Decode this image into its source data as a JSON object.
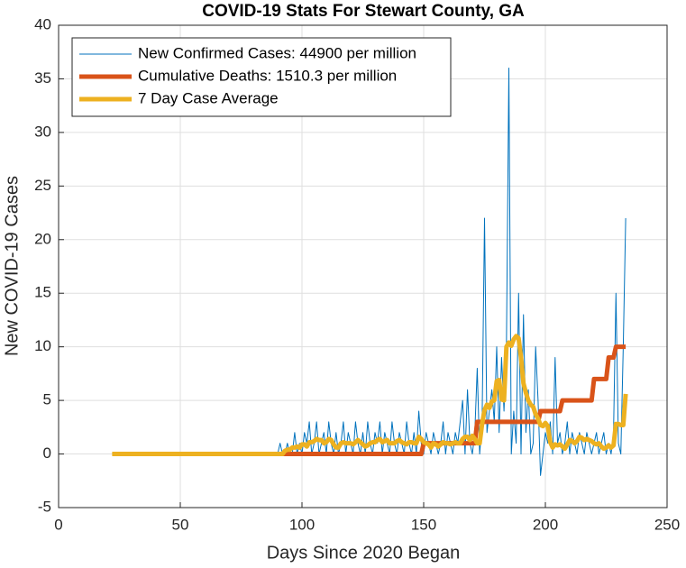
{
  "chart_data": {
    "type": "line",
    "title": "COVID-19 Stats For Stewart County, GA",
    "xlabel": "Days Since 2020 Began",
    "ylabel": "New COVID-19 Cases",
    "xlim": [
      0,
      250
    ],
    "xticks": [
      0,
      50,
      100,
      150,
      200,
      250
    ],
    "ylim": [
      -5,
      40
    ],
    "yticks": [
      -5,
      0,
      5,
      10,
      15,
      20,
      25,
      30,
      35,
      40
    ],
    "grid": true,
    "legend": "upper left",
    "x": [
      22,
      23,
      24,
      25,
      26,
      27,
      28,
      29,
      30,
      31,
      32,
      33,
      34,
      35,
      36,
      37,
      38,
      39,
      40,
      41,
      42,
      43,
      44,
      45,
      46,
      47,
      48,
      49,
      50,
      51,
      52,
      53,
      54,
      55,
      56,
      57,
      58,
      59,
      60,
      61,
      62,
      63,
      64,
      65,
      66,
      67,
      68,
      69,
      70,
      71,
      72,
      73,
      74,
      75,
      76,
      77,
      78,
      79,
      80,
      81,
      82,
      83,
      84,
      85,
      86,
      87,
      88,
      89,
      90,
      91,
      92,
      93,
      94,
      95,
      96,
      97,
      98,
      99,
      100,
      101,
      102,
      103,
      104,
      105,
      106,
      107,
      108,
      109,
      110,
      111,
      112,
      113,
      114,
      115,
      116,
      117,
      118,
      119,
      120,
      121,
      122,
      123,
      124,
      125,
      126,
      127,
      128,
      129,
      130,
      131,
      132,
      133,
      134,
      135,
      136,
      137,
      138,
      139,
      140,
      141,
      142,
      143,
      144,
      145,
      146,
      147,
      148,
      149,
      150,
      151,
      152,
      153,
      154,
      155,
      156,
      157,
      158,
      159,
      160,
      161,
      162,
      163,
      164,
      165,
      166,
      167,
      168,
      169,
      170,
      171,
      172,
      173,
      174,
      175,
      176,
      177,
      178,
      179,
      180,
      181,
      182,
      183,
      184,
      185,
      186,
      187,
      188,
      189,
      190,
      191,
      192,
      193,
      194,
      195,
      196,
      197,
      198,
      199,
      200,
      201,
      202,
      203,
      204,
      205,
      206,
      207,
      208,
      209,
      210,
      211,
      212,
      213,
      214,
      215,
      216,
      217,
      218,
      219,
      220,
      221,
      222,
      223,
      224,
      225,
      226,
      227,
      228,
      229,
      230,
      231,
      232,
      233
    ],
    "series": [
      {
        "name": "New Confirmed Cases: 44900 per million",
        "color": "#0072bd",
        "linewidth": 1,
        "values": [
          0,
          0,
          0,
          0,
          0,
          0,
          0,
          0,
          0,
          0,
          0,
          0,
          0,
          0,
          0,
          0,
          0,
          0,
          0,
          0,
          0,
          0,
          0,
          0,
          0,
          0,
          0,
          0,
          0,
          0,
          0,
          0,
          0,
          0,
          0,
          0,
          0,
          0,
          0,
          0,
          0,
          0,
          0,
          0,
          0,
          0,
          0,
          0,
          0,
          0,
          0,
          0,
          0,
          0,
          0,
          0,
          0,
          0,
          0,
          0,
          0,
          0,
          0,
          0,
          0,
          0,
          0,
          0,
          0,
          1,
          0,
          0,
          1,
          0,
          0,
          2,
          0,
          1,
          0,
          2,
          1,
          3,
          0,
          1,
          3,
          0,
          1,
          2,
          0,
          3,
          1,
          0,
          2,
          0,
          1,
          3,
          0,
          2,
          1,
          0,
          3,
          1,
          0,
          2,
          0,
          3,
          1,
          0,
          2,
          1,
          3,
          0,
          2,
          1,
          0,
          3,
          1,
          0,
          2,
          1,
          0,
          3,
          1,
          0,
          2,
          0,
          4,
          1,
          0,
          2,
          1,
          0,
          2,
          1,
          0,
          1,
          3,
          0,
          2,
          1,
          0,
          2,
          1,
          3,
          5,
          0,
          6,
          1,
          0,
          2,
          8,
          0,
          3,
          22,
          2,
          4,
          6,
          3,
          10,
          2,
          9,
          4,
          10,
          36,
          0,
          4,
          1,
          15,
          0,
          13,
          2,
          6,
          0,
          1,
          10,
          5,
          -2,
          0,
          2,
          1,
          3,
          0,
          9,
          1,
          2,
          0,
          1,
          3,
          0,
          2,
          1,
          0,
          2,
          1,
          0,
          2,
          1,
          0,
          1,
          2,
          0,
          1,
          2,
          0,
          1,
          0,
          2,
          15,
          1,
          0,
          10,
          22
        ]
      },
      {
        "name": "Cumulative Deaths: 1510.3 per million",
        "color": "#d95319",
        "linewidth": 5,
        "values": [
          null,
          null,
          null,
          null,
          null,
          null,
          null,
          null,
          null,
          null,
          null,
          null,
          null,
          null,
          null,
          null,
          null,
          null,
          null,
          null,
          null,
          null,
          null,
          null,
          null,
          null,
          null,
          null,
          null,
          null,
          null,
          null,
          null,
          null,
          null,
          null,
          null,
          null,
          null,
          null,
          null,
          null,
          null,
          null,
          null,
          null,
          null,
          null,
          null,
          null,
          null,
          null,
          null,
          null,
          null,
          null,
          null,
          null,
          null,
          null,
          null,
          null,
          null,
          null,
          null,
          null,
          null,
          null,
          null,
          null,
          0,
          0,
          0,
          0,
          0,
          0,
          0,
          0,
          0,
          0,
          0,
          0,
          0,
          0,
          0,
          0,
          0,
          0,
          0,
          0,
          0,
          0,
          0,
          0,
          0,
          0,
          0,
          0,
          0,
          0,
          0,
          0,
          0,
          0,
          0,
          0,
          0,
          0,
          0,
          0,
          0,
          0,
          0,
          0,
          0,
          0,
          0,
          0,
          0,
          0,
          0,
          0,
          0,
          0,
          0,
          0,
          0,
          0,
          1,
          1,
          1,
          1,
          1,
          1,
          1,
          1,
          1,
          1,
          1,
          1,
          1,
          1,
          1,
          1,
          1,
          1,
          1,
          1,
          1,
          1,
          3,
          3,
          3,
          3,
          3,
          3,
          3,
          3,
          3,
          3,
          3,
          3,
          3,
          3,
          3,
          3,
          3,
          3,
          3,
          3,
          3,
          3,
          3,
          3,
          3,
          3,
          4,
          4,
          4,
          4,
          4,
          4,
          4,
          4,
          4,
          5,
          5,
          5,
          5,
          5,
          5,
          5,
          5,
          5,
          5,
          5,
          5,
          5,
          7,
          7,
          7,
          7,
          7,
          7,
          9,
          9,
          9,
          10,
          10,
          10,
          10,
          10
        ]
      },
      {
        "name": "7 Day Case Average",
        "color": "#edb120",
        "linewidth": 5,
        "values": [
          0,
          0,
          0,
          0,
          0,
          0,
          0,
          0,
          0,
          0,
          0,
          0,
          0,
          0,
          0,
          0,
          0,
          0,
          0,
          0,
          0,
          0,
          0,
          0,
          0,
          0,
          0,
          0,
          0,
          0,
          0,
          0,
          0,
          0,
          0,
          0,
          0,
          0,
          0,
          0,
          0,
          0,
          0,
          0,
          0,
          0,
          0,
          0,
          0,
          0,
          0,
          0,
          0,
          0,
          0,
          0,
          0,
          0,
          0,
          0,
          0,
          0,
          0,
          0,
          0,
          0,
          0,
          0,
          0,
          0,
          0,
          0.3,
          0.4,
          0.4,
          0.6,
          0.6,
          0.7,
          0.6,
          0.9,
          0.9,
          0.7,
          1.1,
          1.1,
          1.2,
          1.4,
          1.3,
          1.3,
          1.0,
          1.1,
          1.4,
          1.3,
          0.9,
          0.6,
          0.6,
          1.0,
          1.1,
          1.0,
          1.0,
          1.0,
          0.9,
          1.1,
          1.3,
          1.1,
          0.9,
          0.7,
          0.8,
          1.0,
          1.1,
          1.1,
          1.3,
          1.4,
          1.1,
          1.2,
          1.3,
          1.0,
          1.0,
          1.0,
          1.2,
          1.3,
          1.1,
          1.0,
          0.9,
          1.1,
          1.1,
          1.0,
          1.0,
          1.6,
          1.4,
          1.1,
          1.0,
          0.9,
          0.6,
          1.0,
          0.9,
          0.7,
          0.9,
          1.1,
          1.0,
          1.0,
          0.9,
          1.0,
          1.1,
          1.0,
          1.0,
          1.4,
          1.6,
          1.6,
          1.3,
          1.7,
          1.4,
          1.0,
          1.0,
          2.8,
          4.1,
          4.6,
          4.3,
          4.9,
          5.0,
          6.8,
          6.9,
          5.1,
          5.0,
          10.0,
          10.4,
          10.1,
          10.7,
          11.0,
          10.8,
          9.0,
          6.6,
          5.7,
          5.0,
          4.6,
          4.4,
          3.7,
          3.3,
          2.7,
          2.6,
          2.9,
          2.6,
          1.1,
          0.6,
          0.9,
          0.8,
          0.9,
          0.7,
          0.5,
          0.9,
          1.3,
          1.2,
          1.0,
          1.2,
          1.6,
          1.5,
          1.3,
          1.4,
          1.3,
          1.2,
          1.0,
          0.9,
          1.0,
          0.7,
          0.5,
          0.6,
          0.8,
          0.6,
          0.8,
          2.8,
          2.8,
          2.7,
          2.7,
          5.6
        ]
      }
    ]
  }
}
